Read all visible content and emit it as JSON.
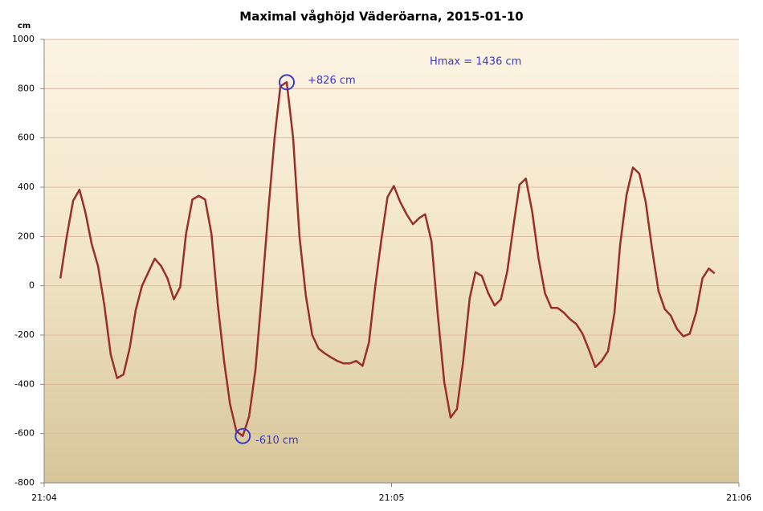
{
  "chart_data": {
    "type": "line",
    "title": "Maximal våghöjd Väderöarna, 2015-01-10",
    "y_unit": "cm",
    "annotations": {
      "max": "+826 cm",
      "min": "-610 cm",
      "hmax": "Hmax = 1436 cm"
    },
    "x": [
      2.8,
      3.9,
      5.0,
      6.1,
      7.1,
      8.2,
      9.3,
      10.4,
      11.5,
      12.6,
      13.7,
      14.8,
      15.8,
      16.9,
      18.0,
      19.1,
      20.2,
      21.3,
      22.4,
      23.5,
      24.5,
      25.6,
      26.7,
      27.8,
      28.9,
      30.0,
      31.1,
      32.1,
      33.2,
      34.3,
      35.4,
      36.5,
      37.6,
      38.7,
      39.8,
      40.8,
      41.9,
      43.0,
      44.1,
      45.2,
      46.3,
      47.4,
      48.5,
      49.5,
      50.6,
      51.7,
      52.8,
      53.9,
      55.0,
      56.1,
      57.2,
      58.2,
      59.3,
      60.4,
      61.5,
      62.6,
      63.7,
      64.8,
      65.8,
      66.9,
      68.0,
      69.1,
      70.2,
      71.3,
      72.4,
      73.5,
      74.5,
      75.6,
      76.7,
      77.8,
      78.9,
      80.0,
      81.1,
      82.1,
      83.2,
      84.3,
      85.4,
      86.5,
      87.6,
      88.7,
      89.8,
      90.8,
      91.9,
      93.0,
      94.1,
      95.2,
      96.3,
      97.4,
      98.5,
      99.5,
      100.6,
      101.7,
      102.8,
      103.9,
      105.0,
      106.1,
      107.2,
      108.2,
      109.3,
      110.4,
      111.5,
      112.6,
      113.7,
      114.8,
      115.8
    ],
    "series": [
      {
        "color": "#9b2d2a",
        "values": [
          30,
          200,
          345,
          390,
          300,
          170,
          80,
          -80,
          -280,
          -375,
          -360,
          -250,
          -100,
          0,
          55,
          110,
          80,
          30,
          -55,
          -5,
          210,
          350,
          365,
          350,
          210,
          -80,
          -310,
          -480,
          -590,
          -610,
          -530,
          -340,
          -30,
          300,
          600,
          810,
          826,
          600,
          200,
          -40,
          -200,
          -255,
          -275,
          -290,
          -305,
          -315,
          -315,
          -305,
          -325,
          -230,
          0,
          180,
          360,
          405,
          340,
          290,
          250,
          275,
          290,
          180,
          -120,
          -390,
          -535,
          -500,
          -300,
          -50,
          55,
          40,
          -30,
          -80,
          -55,
          60,
          250,
          410,
          435,
          300,
          110,
          -30,
          -90,
          -90,
          -110,
          -135,
          -155,
          -195,
          -260,
          -330,
          -305,
          -265,
          -110,
          170,
          370,
          480,
          455,
          340,
          150,
          -20,
          -95,
          -120,
          -175,
          -205,
          -195,
          -110,
          30,
          70,
          50
        ]
      }
    ],
    "xlim": [
      0,
      120
    ],
    "xticks": [
      {
        "value": 0,
        "label": "21:04"
      },
      {
        "value": 60,
        "label": "21:05"
      },
      {
        "value": 120,
        "label": "21:06"
      }
    ],
    "ylim": [
      -800,
      1000
    ],
    "yticks": [
      -800,
      -600,
      -400,
      -200,
      0,
      200,
      400,
      600,
      800,
      1000
    ],
    "grid": true
  }
}
